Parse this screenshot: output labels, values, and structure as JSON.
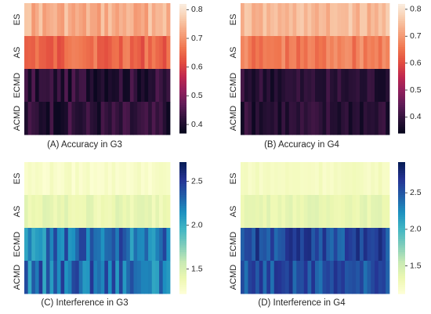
{
  "chart_data": [
    {
      "type": "heatmap",
      "title": "(A) Accuracy in G3",
      "rows": [
        "ES",
        "AS",
        "ECMD",
        "ACMD"
      ],
      "columns": 40,
      "row_means": [
        0.74,
        0.65,
        0.42,
        0.42
      ],
      "colormap": "rocket",
      "colorbar": {
        "range": [
          0.37,
          0.82
        ],
        "ticks": [
          "0.8",
          "0.7",
          "0.6",
          "0.5",
          "0.4"
        ]
      }
    },
    {
      "type": "heatmap",
      "title": "(B) Accuracy in G4",
      "rows": [
        "ES",
        "AS",
        "ECMD",
        "ACMD"
      ],
      "columns": 40,
      "row_means": [
        0.75,
        0.67,
        0.39,
        0.39
      ],
      "colormap": "rocket",
      "colorbar": {
        "range": [
          0.34,
          0.82
        ],
        "ticks": [
          "0.8",
          "0.7",
          "0.6",
          "0.5",
          "0.4"
        ]
      }
    },
    {
      "type": "heatmap",
      "title": "(C) Interference in G3",
      "rows": [
        "ES",
        "AS",
        "ECMD",
        "ACMD"
      ],
      "columns": 40,
      "row_means": [
        1.3,
        1.42,
        2.28,
        2.28
      ],
      "colormap": "YlGnBu",
      "colorbar": {
        "range": [
          1.22,
          2.72
        ],
        "ticks": [
          "2.5",
          "2.0",
          "1.5"
        ]
      }
    },
    {
      "type": "heatmap",
      "title": "(D) Interference in G4",
      "rows": [
        "ES",
        "AS",
        "ECMD",
        "ACMD"
      ],
      "columns": 40,
      "row_means": [
        1.25,
        1.38,
        2.6,
        2.55
      ],
      "colormap": "YlGnBu",
      "colorbar": {
        "range": [
          1.12,
          2.92
        ],
        "ticks": [
          "2.5",
          "2.0",
          "1.5"
        ]
      }
    }
  ]
}
